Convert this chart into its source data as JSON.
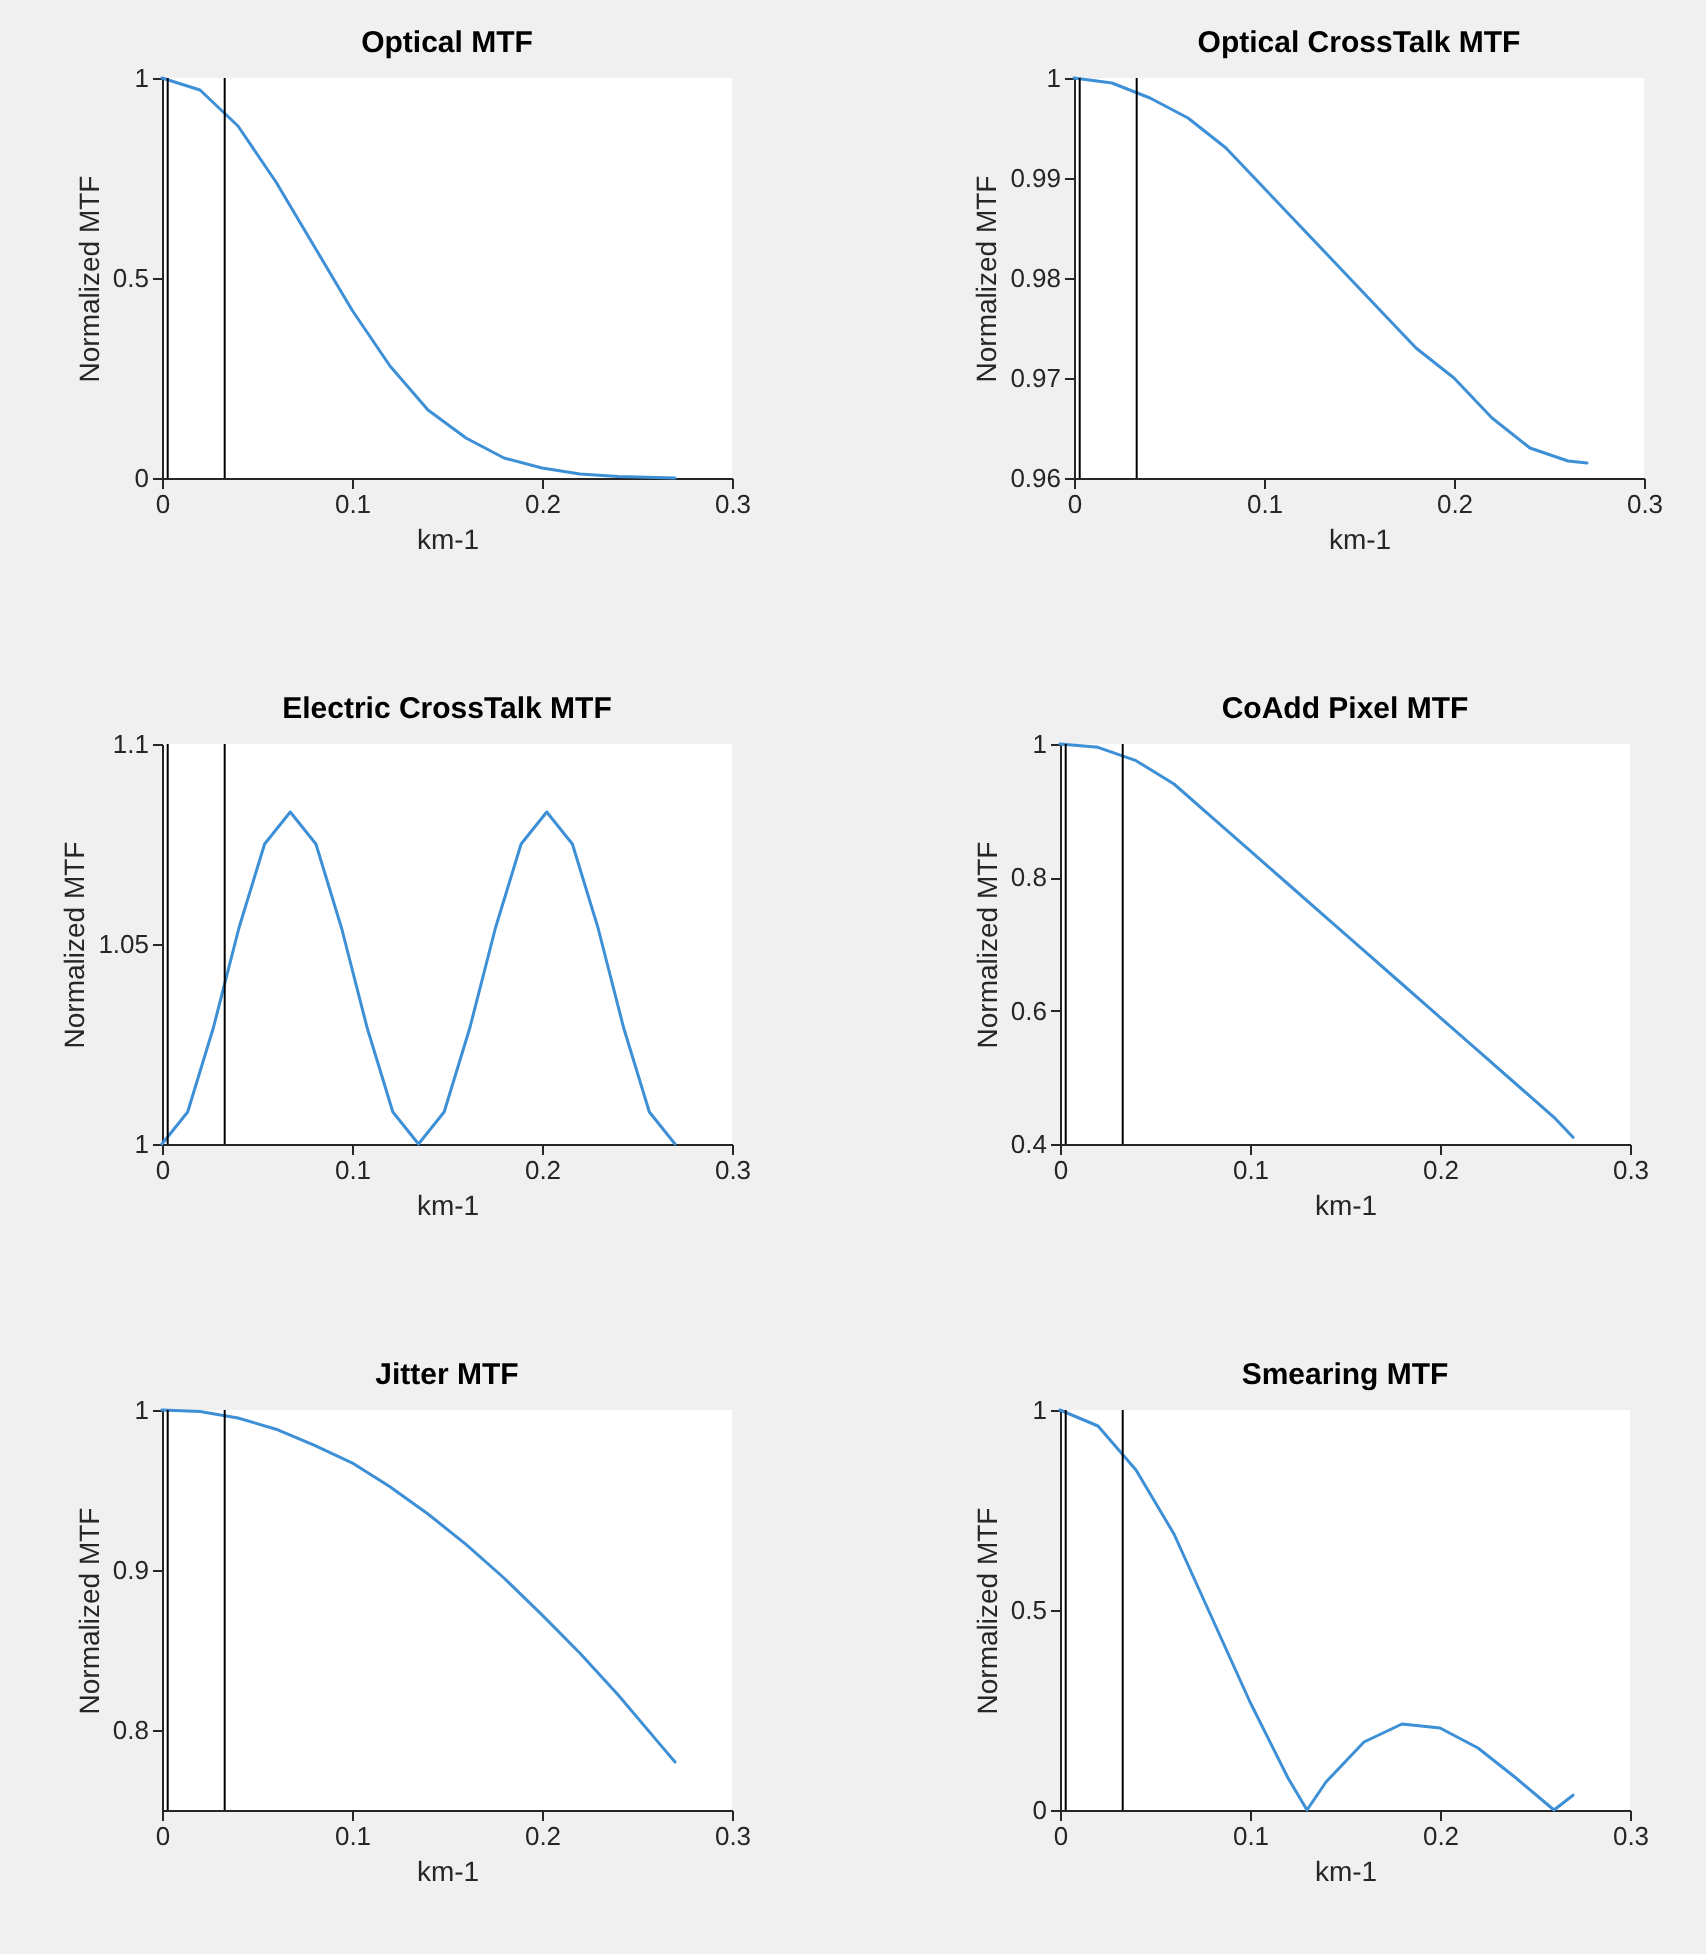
{
  "chart_data": [
    {
      "type": "line",
      "title": "Optical MTF",
      "xlabel": "km-1",
      "ylabel": "Normalized MTF",
      "xlim": [
        0,
        0.3
      ],
      "xticks": [
        0,
        0.1,
        0.2,
        0.3
      ],
      "ylim": [
        0,
        1
      ],
      "yticks": [
        0,
        0.5,
        1
      ],
      "ref_lines": [
        {
          "axis": "x",
          "value": 0.003,
          "color": "#000000"
        },
        {
          "axis": "x",
          "value": 0.033,
          "color": "#000000"
        }
      ],
      "series": [
        {
          "color": "#3d8fd6",
          "x": [
            0,
            0.02,
            0.04,
            0.06,
            0.08,
            0.1,
            0.12,
            0.14,
            0.16,
            0.18,
            0.2,
            0.22,
            0.24,
            0.27
          ],
          "values": [
            1,
            0.97,
            0.88,
            0.74,
            0.58,
            0.42,
            0.28,
            0.17,
            0.1,
            0.05,
            0.025,
            0.01,
            0.004,
            0
          ]
        }
      ]
    },
    {
      "type": "line",
      "title": "Optical CrossTalk MTF",
      "xlabel": "km-1",
      "ylabel": "Normalized MTF",
      "xlim": [
        0,
        0.3
      ],
      "xticks": [
        0,
        0.1,
        0.2,
        0.3
      ],
      "ylim": [
        0.96,
        1
      ],
      "yticks": [
        0.96,
        0.97,
        0.98,
        0.99,
        1
      ],
      "ref_lines": [
        {
          "axis": "x",
          "value": 0.003,
          "color": "#000000"
        },
        {
          "axis": "x",
          "value": 0.033,
          "color": "#000000"
        }
      ],
      "series": [
        {
          "color": "#3d8fd6",
          "x": [
            0,
            0.02,
            0.04,
            0.06,
            0.08,
            0.1,
            0.12,
            0.14,
            0.16,
            0.18,
            0.2,
            0.22,
            0.24,
            0.26,
            0.27
          ],
          "values": [
            1,
            0.9995,
            0.998,
            0.996,
            0.993,
            0.989,
            0.985,
            0.981,
            0.977,
            0.973,
            0.97,
            0.966,
            0.963,
            0.9617,
            0.9615
          ]
        }
      ]
    },
    {
      "type": "line",
      "title": "Electric CrossTalk MTF",
      "xlabel": "km-1",
      "ylabel": "Normalized MTF",
      "xlim": [
        0,
        0.3
      ],
      "xticks": [
        0,
        0.1,
        0.2,
        0.3
      ],
      "ylim": [
        1,
        1.1
      ],
      "yticks": [
        1,
        1.05,
        1.1
      ],
      "ref_lines": [
        {
          "axis": "x",
          "value": 0.003,
          "color": "#000000"
        },
        {
          "axis": "x",
          "value": 0.033,
          "color": "#000000"
        }
      ],
      "series": [
        {
          "color": "#3d8fd6",
          "x": [
            0,
            0.0135,
            0.027,
            0.0405,
            0.054,
            0.0675,
            0.081,
            0.0945,
            0.108,
            0.1215,
            0.135,
            0.1485,
            0.162,
            0.1755,
            0.189,
            0.2025,
            0.216,
            0.2295,
            0.243,
            0.2565,
            0.27
          ],
          "values": [
            1,
            1.008,
            1.029,
            1.054,
            1.075,
            1.083,
            1.075,
            1.054,
            1.029,
            1.008,
            1,
            1.008,
            1.029,
            1.054,
            1.075,
            1.083,
            1.075,
            1.054,
            1.029,
            1.008,
            1
          ]
        }
      ]
    },
    {
      "type": "line",
      "title": "CoAdd Pixel MTF",
      "xlabel": "km-1",
      "ylabel": "Normalized MTF",
      "xlim": [
        0,
        0.3
      ],
      "xticks": [
        0,
        0.1,
        0.2,
        0.3
      ],
      "ylim": [
        0.4,
        1
      ],
      "yticks": [
        0.4,
        0.6,
        0.8,
        1
      ],
      "ref_lines": [
        {
          "axis": "x",
          "value": 0.003,
          "color": "#000000"
        },
        {
          "axis": "x",
          "value": 0.033,
          "color": "#000000"
        }
      ],
      "series": [
        {
          "color": "#3d8fd6",
          "x": [
            0,
            0.02,
            0.04,
            0.06,
            0.08,
            0.1,
            0.12,
            0.14,
            0.16,
            0.18,
            0.2,
            0.22,
            0.24,
            0.26,
            0.27
          ],
          "values": [
            1,
            0.995,
            0.975,
            0.94,
            0.89,
            0.84,
            0.79,
            0.74,
            0.69,
            0.64,
            0.59,
            0.54,
            0.49,
            0.44,
            0.41
          ]
        }
      ]
    },
    {
      "type": "line",
      "title": "Jitter MTF",
      "xlabel": "km-1",
      "ylabel": "Normalized MTF",
      "xlim": [
        0,
        0.3
      ],
      "xticks": [
        0,
        0.1,
        0.2,
        0.3
      ],
      "ylim": [
        0.75,
        1
      ],
      "yticks": [
        0.8,
        0.9,
        1
      ],
      "ref_lines": [
        {
          "axis": "x",
          "value": 0.003,
          "color": "#000000"
        },
        {
          "axis": "x",
          "value": 0.033,
          "color": "#000000"
        }
      ],
      "series": [
        {
          "color": "#3d8fd6",
          "x": [
            0,
            0.02,
            0.04,
            0.06,
            0.08,
            0.1,
            0.12,
            0.14,
            0.16,
            0.18,
            0.2,
            0.22,
            0.24,
            0.26,
            0.27
          ],
          "values": [
            1,
            0.999,
            0.995,
            0.988,
            0.978,
            0.967,
            0.952,
            0.935,
            0.916,
            0.895,
            0.872,
            0.848,
            0.822,
            0.794,
            0.78
          ]
        }
      ]
    },
    {
      "type": "line",
      "title": "Smearing MTF",
      "xlabel": "km-1",
      "ylabel": "Normalized MTF",
      "xlim": [
        0,
        0.3
      ],
      "xticks": [
        0,
        0.1,
        0.2,
        0.3
      ],
      "ylim": [
        0,
        1
      ],
      "yticks": [
        0,
        0.5,
        1
      ],
      "ref_lines": [
        {
          "axis": "x",
          "value": 0.003,
          "color": "#000000"
        },
        {
          "axis": "x",
          "value": 0.033,
          "color": "#000000"
        }
      ],
      "series": [
        {
          "color": "#3d8fd6",
          "x": [
            0,
            0.02,
            0.04,
            0.06,
            0.08,
            0.1,
            0.12,
            0.13,
            0.14,
            0.16,
            0.18,
            0.2,
            0.22,
            0.24,
            0.26,
            0.27
          ],
          "values": [
            1,
            0.96,
            0.85,
            0.69,
            0.48,
            0.27,
            0.08,
            0,
            0.07,
            0.17,
            0.215,
            0.205,
            0.155,
            0.08,
            0,
            0.037
          ]
        }
      ]
    }
  ]
}
